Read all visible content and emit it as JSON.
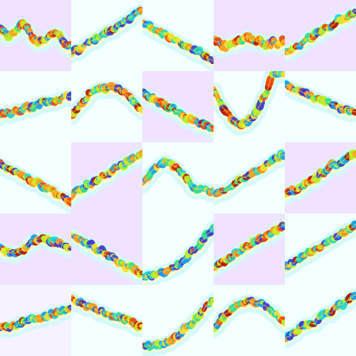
{
  "colors": {
    "page_background": "#f4ffff",
    "tile_backgrounds": {
      "white": "#f4ffff",
      "lavender": "#efe3ff",
      "pale": "#f6f2ff"
    },
    "colormap": [
      "#3b3bd6",
      "#1aa0f0",
      "#20d8d8",
      "#30e090",
      "#b8f028",
      "#ffe030",
      "#ff9a20",
      "#f04810",
      "#b01808"
    ],
    "halo_outer": "#cffaff",
    "halo_inner": "#fff8c8"
  },
  "tiles": [
    {
      "bg": "lavender",
      "trend": "down-wavy",
      "noise": 0.55,
      "hot": 0.72
    },
    {
      "bg": "white",
      "trend": "rise",
      "noise": 0.4,
      "hot": 0.35
    },
    {
      "bg": "white",
      "trend": "fall",
      "noise": 0.35,
      "hot": 0.55
    },
    {
      "bg": "lavender",
      "trend": "flat-noisy",
      "noise": 0.75,
      "hot": 0.72
    },
    {
      "bg": "lavender",
      "trend": "rise",
      "noise": 0.4,
      "hot": 0.45
    },
    {
      "bg": "white",
      "trend": "rise-gentle",
      "noise": 0.45,
      "hot": 0.45
    },
    {
      "bg": "white",
      "trend": "arch",
      "noise": 0.35,
      "hot": 0.55
    },
    {
      "bg": "lavender",
      "trend": "fall",
      "noise": 0.45,
      "hot": 0.6
    },
    {
      "bg": "white",
      "trend": "valley",
      "noise": 0.45,
      "hot": 0.5
    },
    {
      "bg": "white",
      "trend": "fall-gentle",
      "noise": 0.35,
      "hot": 0.55
    },
    {
      "bg": "white",
      "trend": "fall",
      "noise": 0.35,
      "hot": 0.55
    },
    {
      "bg": "lavender",
      "trend": "rise",
      "noise": 0.45,
      "hot": 0.5
    },
    {
      "bg": "white",
      "trend": "hump",
      "noise": 0.4,
      "hot": 0.45
    },
    {
      "bg": "white",
      "trend": "rise",
      "noise": 0.35,
      "hot": 0.5
    },
    {
      "bg": "lavender",
      "trend": "rise",
      "noise": 0.55,
      "hot": 0.45
    },
    {
      "bg": "lavender",
      "trend": "flat-wavy",
      "noise": 0.45,
      "hot": 0.4
    },
    {
      "bg": "lavender",
      "trend": "fall",
      "noise": 0.4,
      "hot": 0.55
    },
    {
      "bg": "white",
      "trend": "convex-rise",
      "noise": 0.4,
      "hot": 0.2
    },
    {
      "bg": "lavender",
      "trend": "rise",
      "noise": 0.4,
      "hot": 0.5
    },
    {
      "bg": "white",
      "trend": "rise",
      "noise": 0.35,
      "hot": 0.5
    },
    {
      "bg": "pale",
      "trend": "rise-gentle",
      "noise": 0.45,
      "hot": 0.5
    },
    {
      "bg": "white",
      "trend": "fall-gentle",
      "noise": 0.4,
      "hot": 0.55
    },
    {
      "bg": "white",
      "trend": "convex-rise",
      "noise": 0.4,
      "hot": 0.3
    },
    {
      "bg": "white",
      "trend": "arch",
      "noise": 0.45,
      "hot": 0.45
    },
    {
      "bg": "white",
      "trend": "rise",
      "noise": 0.5,
      "hot": 0.4
    }
  ]
}
